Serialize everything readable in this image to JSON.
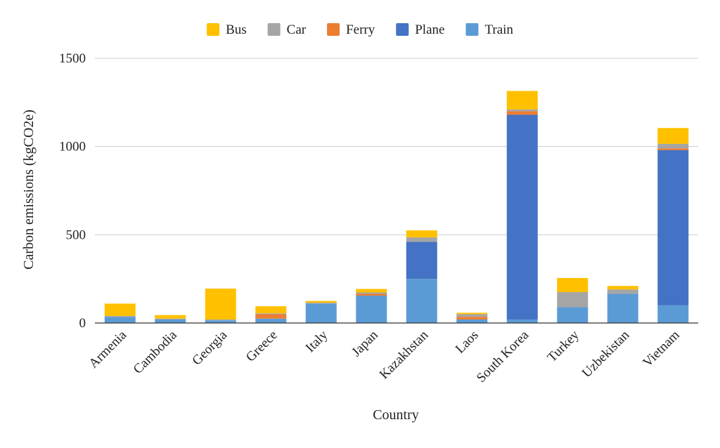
{
  "chart_data": {
    "type": "bar",
    "stacked": true,
    "title": "",
    "xlabel": "Country",
    "ylabel": "Carbon emissions (kgCO2e)",
    "ylim": [
      0,
      1500
    ],
    "yticks": [
      0,
      500,
      1000,
      1500
    ],
    "grid": true,
    "legend_position": "top-center",
    "categories": [
      "Armenia",
      "Cambodia",
      "Georgia",
      "Greece",
      "Italy",
      "Japan",
      "Kazakhstan",
      "Laos",
      "South Korea",
      "Turkey",
      "Uzbekistan",
      "Vietnam"
    ],
    "series": [
      {
        "name": "Train",
        "color": "#5b9bd5",
        "values": [
          35,
          20,
          15,
          25,
          110,
          155,
          250,
          20,
          20,
          90,
          165,
          100
        ]
      },
      {
        "name": "Plane",
        "color": "#4472c4",
        "values": [
          0,
          0,
          0,
          0,
          0,
          0,
          210,
          0,
          1160,
          0,
          0,
          880
        ]
      },
      {
        "name": "Ferry",
        "color": "#ed7d31",
        "values": [
          0,
          0,
          0,
          25,
          0,
          10,
          0,
          15,
          20,
          0,
          0,
          10
        ]
      },
      {
        "name": "Car",
        "color": "#a5a5a5",
        "values": [
          5,
          5,
          5,
          5,
          5,
          8,
          25,
          15,
          10,
          85,
          25,
          25
        ]
      },
      {
        "name": "Bus",
        "color": "#ffc000",
        "values": [
          70,
          20,
          175,
          40,
          10,
          20,
          40,
          8,
          105,
          80,
          20,
          90
        ]
      }
    ],
    "legend_order": [
      "Bus",
      "Car",
      "Ferry",
      "Plane",
      "Train"
    ]
  }
}
